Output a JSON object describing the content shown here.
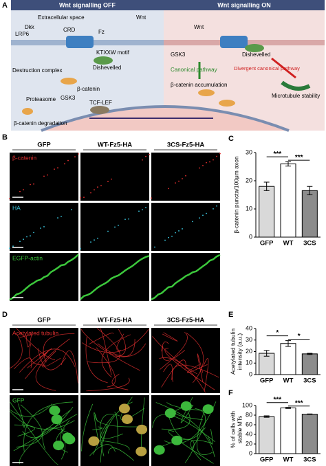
{
  "panels": {
    "a": "A",
    "b": "B",
    "d": "D"
  },
  "diagram": {
    "off_title": "Wnt signalling OFF",
    "on_title": "Wnt signalling ON",
    "off": {
      "extracellular": "Extracellular space",
      "wnt": "Wnt",
      "dkk": "Dkk",
      "lrp6": "LRP6",
      "crd": "CRD",
      "fz": "Fz",
      "motif": "KTXXW motif",
      "dishevelled": "Dishevelled",
      "complex": "Destruction complex",
      "bcat": "β-catenin",
      "gsk3": "GSK3",
      "proteasome": "Proteasome",
      "degradation": "β-catenin degradation",
      "tcf": "TCF-LEF"
    },
    "on": {
      "wnt": "Wnt",
      "gsk3": "GSK3",
      "dishevelled": "Dishevelled",
      "canonical": "Canonical pathway",
      "divergent": "Divergent canonical pathway",
      "accumulation": "β-catenin accumulation",
      "microtubule": "Microtubule stability"
    }
  },
  "micrographs_b": {
    "columns": [
      "GFP",
      "WT-Fz5-HA",
      "3CS-Fz5-HA"
    ],
    "rows": [
      "β-catenin",
      "HA",
      "EGFP-actin"
    ]
  },
  "micrographs_d": {
    "columns": [
      "GFP",
      "WT-Fz5-HA",
      "3CS-Fz5-HA"
    ],
    "rows": [
      "Acetylated tubulin",
      "GFP"
    ]
  },
  "chart_data": [
    {
      "type": "bar",
      "panel": "C",
      "ylabel": [
        "β-catenin puncta/100μm axon"
      ],
      "categories": [
        "GFP",
        "WT",
        "3CS"
      ],
      "values": [
        18,
        26,
        16.5
      ],
      "errors": [
        1.5,
        0.8,
        1.5
      ],
      "colors": [
        "#d9d9d9",
        "#ffffff",
        "#8c8c8c"
      ],
      "ylim": [
        0,
        30
      ],
      "yticks": [
        0,
        10,
        20,
        30
      ],
      "annotations": [
        "***",
        "***"
      ]
    },
    {
      "type": "bar",
      "panel": "E",
      "ylabel": [
        "Acetylated tubulin",
        "intensity (a.u.)"
      ],
      "categories": [
        "GFP",
        "WT",
        "3CS"
      ],
      "values": [
        18.5,
        27,
        18
      ],
      "errors": [
        2.5,
        2.5,
        0.5
      ],
      "colors": [
        "#d9d9d9",
        "#ffffff",
        "#8c8c8c"
      ],
      "ylim": [
        0,
        40
      ],
      "yticks": [
        0,
        10,
        20,
        30,
        40
      ],
      "annotations": [
        "*",
        "*"
      ]
    },
    {
      "type": "bar",
      "panel": "F",
      "ylabel": [
        "% of cells with",
        "stable MTs"
      ],
      "categories": [
        "GFP",
        "WT",
        "3CS"
      ],
      "values": [
        77,
        95,
        82
      ],
      "errors": [
        1.5,
        1,
        0.5
      ],
      "colors": [
        "#d9d9d9",
        "#ffffff",
        "#8c8c8c"
      ],
      "ylim": [
        0,
        100
      ],
      "yticks": [
        0,
        20,
        40,
        60,
        80,
        100
      ],
      "annotations": [
        "***",
        "***"
      ]
    }
  ]
}
